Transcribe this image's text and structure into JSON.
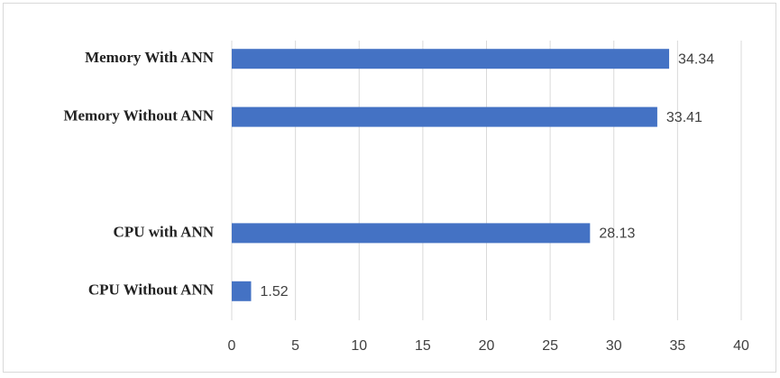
{
  "chart_data": {
    "type": "barh",
    "categories": [
      "Memory With ANN",
      "Memory Without ANN",
      null,
      "CPU with ANN",
      "CPU Without ANN"
    ],
    "values": [
      34.34,
      33.41,
      null,
      28.13,
      1.52
    ],
    "color": "#4472c4",
    "xlim": [
      0,
      40
    ],
    "xticks": [
      0,
      5,
      10,
      15,
      20,
      25,
      30,
      35,
      40
    ],
    "grid": true
  }
}
